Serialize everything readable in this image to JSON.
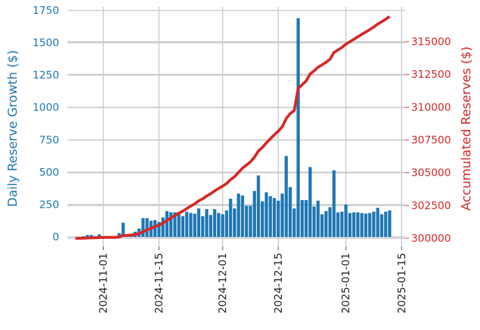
{
  "chart_data": {
    "type": "bar_line_dual",
    "ylabel": "Daily Reserve Growth ($)",
    "y2label": "Accumulated Reserves ($)",
    "x": [
      "2024-10-25",
      "2024-10-26",
      "2024-10-27",
      "2024-10-28",
      "2024-10-29",
      "2024-10-30",
      "2024-10-31",
      "2024-11-01",
      "2024-11-02",
      "2024-11-03",
      "2024-11-04",
      "2024-11-05",
      "2024-11-06",
      "2024-11-07",
      "2024-11-08",
      "2024-11-09",
      "2024-11-10",
      "2024-11-11",
      "2024-11-12",
      "2024-11-13",
      "2024-11-14",
      "2024-11-15",
      "2024-11-16",
      "2024-11-17",
      "2024-11-18",
      "2024-11-19",
      "2024-11-20",
      "2024-11-21",
      "2024-11-22",
      "2024-11-23",
      "2024-11-24",
      "2024-11-25",
      "2024-11-26",
      "2024-11-27",
      "2024-11-28",
      "2024-11-29",
      "2024-11-30",
      "2024-12-01",
      "2024-12-02",
      "2024-12-03",
      "2024-12-04",
      "2024-12-05",
      "2024-12-06",
      "2024-12-07",
      "2024-12-08",
      "2024-12-09",
      "2024-12-10",
      "2024-12-11",
      "2024-12-12",
      "2024-12-13",
      "2024-12-14",
      "2024-12-15",
      "2024-12-16",
      "2024-12-17",
      "2024-12-18",
      "2024-12-19",
      "2024-12-20",
      "2024-12-21",
      "2024-12-22",
      "2024-12-23",
      "2024-12-24",
      "2024-12-25",
      "2024-12-26",
      "2024-12-27",
      "2024-12-28",
      "2024-12-29",
      "2024-12-30",
      "2024-12-31",
      "2025-01-01",
      "2025-01-02",
      "2025-01-03",
      "2025-01-04",
      "2025-01-05",
      "2025-01-06",
      "2025-01-07",
      "2025-01-08",
      "2025-01-09",
      "2025-01-10",
      "2025-01-11",
      "2025-01-12"
    ],
    "series": [
      {
        "name": "Daily Reserve Growth",
        "color": "#1f77b4",
        "kind": "bar",
        "values": [
          0,
          0,
          5,
          15,
          15,
          5,
          20,
          5,
          5,
          5,
          0,
          30,
          110,
          10,
          20,
          40,
          65,
          145,
          145,
          125,
          130,
          115,
          150,
          200,
          190,
          190,
          175,
          160,
          195,
          185,
          180,
          220,
          160,
          215,
          170,
          215,
          185,
          175,
          205,
          295,
          220,
          335,
          320,
          240,
          240,
          355,
          475,
          275,
          345,
          315,
          300,
          280,
          335,
          625,
          385,
          220,
          1690,
          285,
          285,
          540,
          235,
          280,
          175,
          200,
          230,
          515,
          190,
          195,
          250,
          185,
          190,
          190,
          185,
          180,
          185,
          195,
          225,
          175,
          195,
          205
        ]
      },
      {
        "name": "Accumulated Reserves",
        "color": "#d62728",
        "kind": "line",
        "axis": "y2",
        "values": [
          300000,
          300000,
          300005,
          300020,
          300035,
          300040,
          300060,
          300065,
          300070,
          300075,
          300075,
          300105,
          300215,
          300225,
          300245,
          300285,
          300350,
          300495,
          300640,
          300765,
          300895,
          301010,
          301160,
          301360,
          301550,
          301740,
          301915,
          302075,
          302270,
          302455,
          302635,
          302855,
          303015,
          303230,
          303400,
          303615,
          303800,
          303975,
          304180,
          304475,
          304695,
          305030,
          305350,
          305590,
          305830,
          306185,
          306660,
          306935,
          307280,
          307595,
          307895,
          308175,
          308510,
          309135,
          309520,
          309740,
          311430,
          311715,
          312000,
          312540,
          312775,
          313055,
          313230,
          313430,
          313660,
          314175,
          314365,
          314560,
          314810,
          314995,
          315185,
          315375,
          315560,
          315740,
          315925,
          316120,
          316345,
          316520,
          316715,
          316920
        ]
      }
    ],
    "xlim": [
      "2024-10-23",
      "2025-01-16"
    ],
    "xticks": [
      "2024-11-01",
      "2024-11-15",
      "2024-12-01",
      "2024-12-15",
      "2025-01-01",
      "2025-01-15"
    ],
    "ylim": [
      -75,
      1777
    ],
    "yticks": [
      0,
      250,
      500,
      750,
      1000,
      1250,
      1500,
      1750
    ],
    "y2lim": [
      299364,
      317650
    ],
    "y2ticks": [
      300000,
      302500,
      305000,
      307500,
      310000,
      312500,
      315000
    ],
    "grid": true
  }
}
